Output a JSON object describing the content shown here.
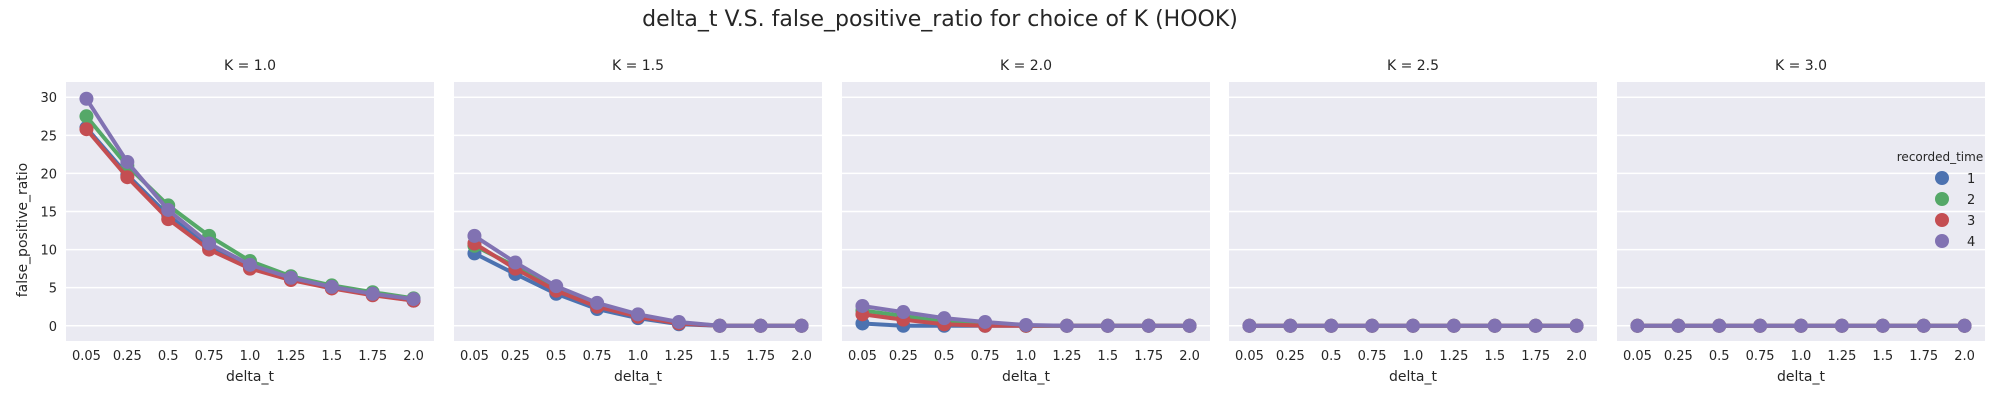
{
  "chart_data": {
    "type": "line",
    "title": "delta_t V.S. false_positive_ratio for choice of K (HOOK)",
    "xlabel": "delta_t",
    "ylabel": "false_positive_ratio",
    "x": [
      "0.05",
      "0.25",
      "0.5",
      "0.75",
      "1.0",
      "1.25",
      "1.5",
      "1.75",
      "2.0"
    ],
    "ylim": [
      -2,
      32
    ],
    "yticks": [
      0,
      5,
      10,
      15,
      20,
      25,
      30
    ],
    "grid": true,
    "legend": {
      "title": "recorded_time",
      "placement": "right",
      "entries": [
        "1",
        "2",
        "3",
        "4"
      ]
    },
    "colors": [
      "#4c72b0",
      "#55a868",
      "#c44e52",
      "#8172b2"
    ],
    "panels": [
      {
        "title": "K = 1.0",
        "series": [
          {
            "name": "1",
            "values": [
              26.0,
              19.8,
              14.5,
              10.3,
              7.6,
              6.1,
              5.0,
              4.1,
              3.3
            ]
          },
          {
            "name": "2",
            "values": [
              27.5,
              21.0,
              15.8,
              11.8,
              8.5,
              6.5,
              5.3,
              4.4,
              3.6
            ]
          },
          {
            "name": "3",
            "values": [
              25.8,
              19.5,
              14.0,
              10.0,
              7.5,
              6.0,
              4.9,
              4.0,
              3.3
            ]
          },
          {
            "name": "4",
            "values": [
              29.8,
              21.5,
              15.2,
              10.8,
              8.0,
              6.3,
              5.1,
              4.2,
              3.5
            ]
          }
        ]
      },
      {
        "title": "K = 1.5",
        "series": [
          {
            "name": "1",
            "values": [
              9.5,
              6.8,
              4.2,
              2.2,
              1.0,
              0.2,
              0.0,
              0.0,
              0.0
            ]
          },
          {
            "name": "2",
            "values": [
              10.5,
              7.8,
              4.8,
              2.6,
              1.3,
              0.4,
              0.0,
              0.0,
              0.0
            ]
          },
          {
            "name": "3",
            "values": [
              10.8,
              7.5,
              4.6,
              2.5,
              1.2,
              0.3,
              0.0,
              0.0,
              0.0
            ]
          },
          {
            "name": "4",
            "values": [
              11.8,
              8.3,
              5.2,
              3.0,
              1.5,
              0.5,
              0.0,
              0.0,
              0.0
            ]
          }
        ]
      },
      {
        "title": "K = 2.0",
        "series": [
          {
            "name": "1",
            "values": [
              0.3,
              0.0,
              0.0,
              0.0,
              0.0,
              0.0,
              0.0,
              0.0,
              0.0
            ]
          },
          {
            "name": "2",
            "values": [
              2.0,
              1.3,
              0.5,
              0.2,
              0.0,
              0.0,
              0.0,
              0.0,
              0.0
            ]
          },
          {
            "name": "3",
            "values": [
              1.5,
              0.8,
              0.2,
              0.0,
              0.0,
              0.0,
              0.0,
              0.0,
              0.0
            ]
          },
          {
            "name": "4",
            "values": [
              2.6,
              1.8,
              1.0,
              0.5,
              0.1,
              0.0,
              0.0,
              0.0,
              0.0
            ]
          }
        ]
      },
      {
        "title": "K = 2.5",
        "series": [
          {
            "name": "1",
            "values": [
              0,
              0,
              0,
              0,
              0,
              0,
              0,
              0,
              0
            ]
          },
          {
            "name": "2",
            "values": [
              0,
              0,
              0,
              0,
              0,
              0,
              0,
              0,
              0
            ]
          },
          {
            "name": "3",
            "values": [
              0,
              0,
              0,
              0,
              0,
              0,
              0,
              0,
              0
            ]
          },
          {
            "name": "4",
            "values": [
              0,
              0,
              0,
              0,
              0,
              0,
              0,
              0,
              0
            ]
          }
        ]
      },
      {
        "title": "K = 3.0",
        "series": [
          {
            "name": "1",
            "values": [
              0,
              0,
              0,
              0,
              0,
              0,
              0,
              0,
              0
            ]
          },
          {
            "name": "2",
            "values": [
              0,
              0,
              0,
              0,
              0,
              0,
              0,
              0,
              0
            ]
          },
          {
            "name": "3",
            "values": [
              0,
              0,
              0,
              0,
              0,
              0,
              0,
              0,
              0
            ]
          },
          {
            "name": "4",
            "values": [
              0,
              0,
              0,
              0,
              0,
              0,
              0,
              0,
              0
            ]
          }
        ]
      }
    ]
  }
}
